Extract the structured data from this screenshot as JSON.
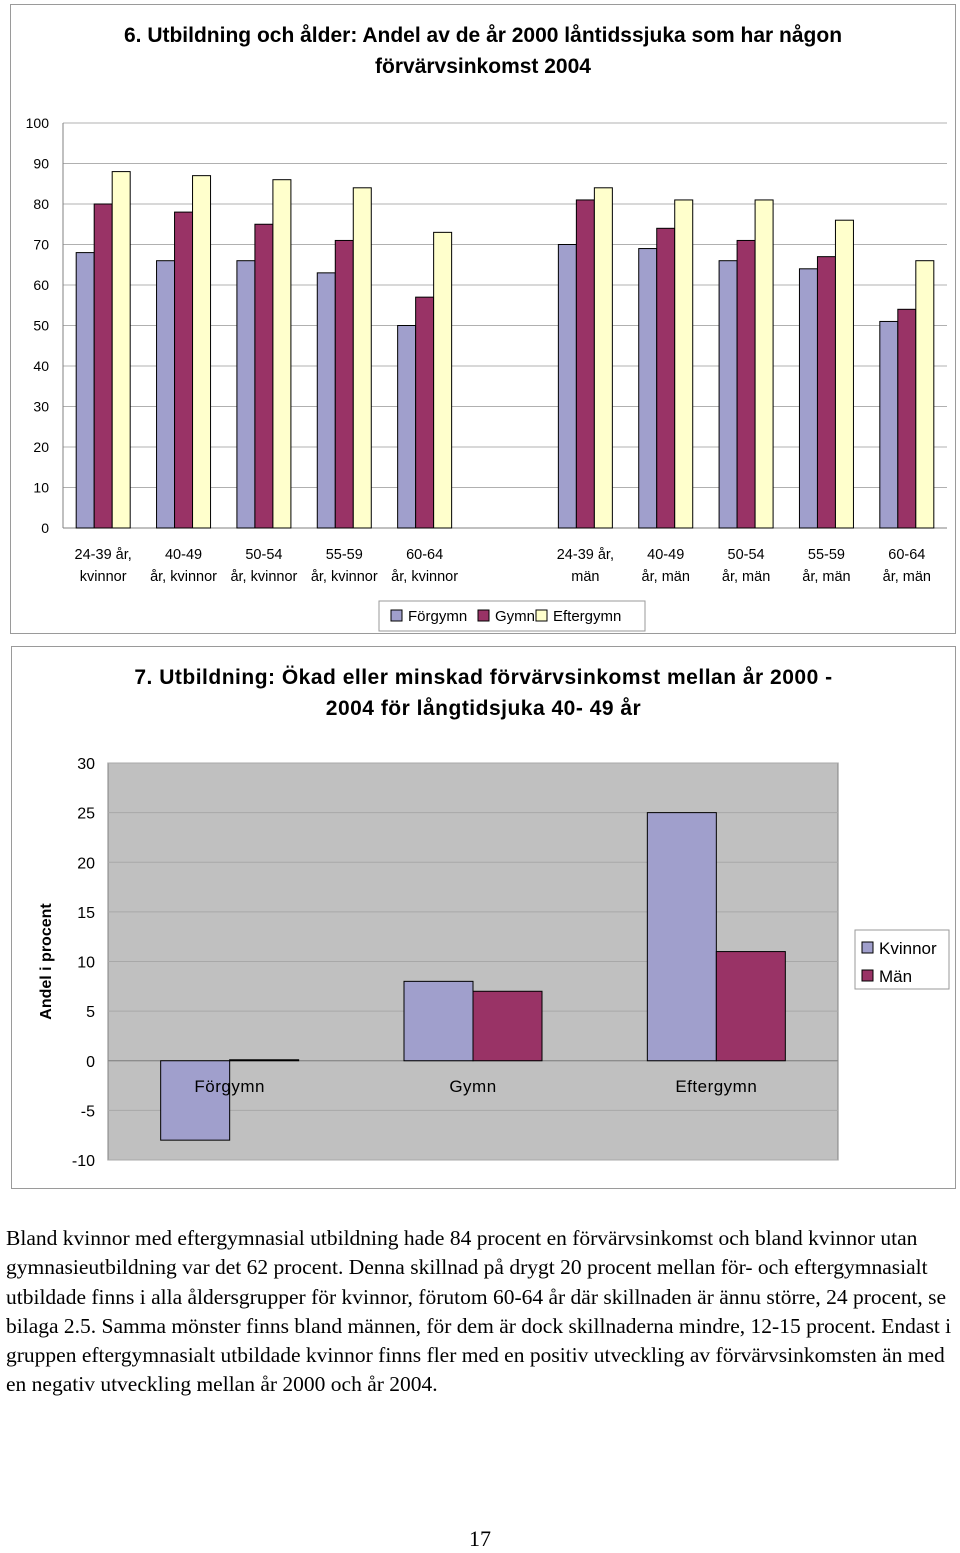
{
  "chart_data": [
    {
      "type": "bar",
      "title": "6. Utbildning och ålder: Andel av de år 2000 låntidssjuka som har någon förvärvsinkomst 2004",
      "categories": [
        "24-39 år, kvinnor",
        "40-49 år, kvinnor",
        "50-54 år, kvinnor",
        "55-59 år, kvinnor",
        "60-64 år, kvinnor",
        "",
        "24-39 år, män",
        "40-49 år, män",
        "50-54 år, män",
        "55-59 år, män",
        "60-64 år, män"
      ],
      "category_lines": [
        [
          "24-39 år,",
          "kvinnor"
        ],
        [
          "40-49",
          "år, kvinnor"
        ],
        [
          "50-54",
          "år, kvinnor"
        ],
        [
          "55-59",
          "år, kvinnor"
        ],
        [
          "60-64",
          "år, kvinnor"
        ],
        [
          "",
          ""
        ],
        [
          "24-39 år,",
          "män"
        ],
        [
          "40-49",
          "år, män"
        ],
        [
          "50-54",
          "år, män"
        ],
        [
          "55-59",
          "år, män"
        ],
        [
          "60-64",
          "år, män"
        ]
      ],
      "series": [
        {
          "name": "Förgymn",
          "color": "#a09fcc",
          "values": [
            68,
            66,
            66,
            63,
            50,
            null,
            70,
            69,
            66,
            64,
            51
          ]
        },
        {
          "name": "Gymn",
          "color": "#993366",
          "values": [
            80,
            78,
            75,
            71,
            57,
            null,
            81,
            74,
            71,
            67,
            54
          ]
        },
        {
          "name": "Eftergymn",
          "color": "#ffffcc",
          "values": [
            88,
            87,
            86,
            84,
            73,
            null,
            84,
            81,
            81,
            76,
            66
          ]
        }
      ],
      "ylim": [
        0,
        100
      ],
      "yticks": [
        0,
        10,
        20,
        30,
        40,
        50,
        60,
        70,
        80,
        90,
        100
      ],
      "grid": true,
      "legend_position": "bottom"
    },
    {
      "type": "bar",
      "title": "7. Utbildning: Ökad eller minskad förvärvsinkomst mellan år 2000 - 2004 för långtidsjuka 40- 49 år",
      "ylabel": "Andel i procent",
      "categories": [
        "Förgymn",
        "Gymn",
        "Eftergymn"
      ],
      "series": [
        {
          "name": "Kvinnor",
          "color": "#a09fcc",
          "values": [
            -8,
            8,
            25
          ]
        },
        {
          "name": "Män",
          "color": "#993366",
          "values": [
            0.1,
            7,
            11
          ]
        }
      ],
      "ylim": [
        -10,
        30
      ],
      "yticks": [
        -10,
        -5,
        0,
        5,
        10,
        15,
        20,
        25,
        30
      ],
      "grid": true,
      "plot_background": "#c0c0c0",
      "legend_position": "right"
    }
  ],
  "body_text": "Bland kvinnor med eftergymnasial utbildning hade 84 procent en förvärvsinkomst och bland kvinnor utan gymnasieutbildning var det 62 procent. Denna skillnad på drygt 20 procent mellan för- och eftergymnasialt utbildade finns i alla åldersgrupper för kvinnor, förutom 60-64 år där skillnaden är ännu större, 24 procent, se bilaga 2.5. Samma mönster finns bland männen, för dem är dock skillnaderna mindre, 12-15 procent. Endast i gruppen eftergymnasialt utbildade kvinnor finns fler med en positiv utveckling av förvärvsinkomsten än med en negativ utveckling mellan år 2000 och år 2004.",
  "page_number": "17"
}
